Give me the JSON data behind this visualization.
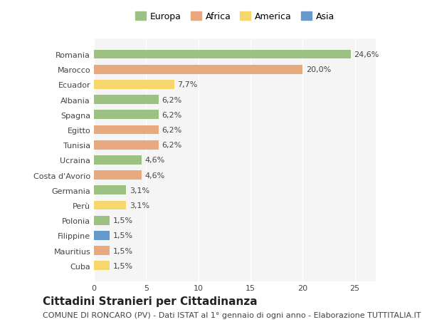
{
  "countries": [
    "Romania",
    "Marocco",
    "Ecuador",
    "Albania",
    "Spagna",
    "Egitto",
    "Tunisia",
    "Ucraina",
    "Costa d'Avorio",
    "Germania",
    "Perù",
    "Polonia",
    "Filippine",
    "Mauritius",
    "Cuba"
  ],
  "values": [
    24.6,
    20.0,
    7.7,
    6.2,
    6.2,
    6.2,
    6.2,
    4.6,
    4.6,
    3.1,
    3.1,
    1.5,
    1.5,
    1.5,
    1.5
  ],
  "labels": [
    "24,6%",
    "20,0%",
    "7,7%",
    "6,2%",
    "6,2%",
    "6,2%",
    "6,2%",
    "4,6%",
    "4,6%",
    "3,1%",
    "3,1%",
    "1,5%",
    "1,5%",
    "1,5%",
    "1,5%"
  ],
  "continents": [
    "Europa",
    "Africa",
    "America",
    "Europa",
    "Europa",
    "Africa",
    "Africa",
    "Europa",
    "Africa",
    "Europa",
    "America",
    "Europa",
    "Asia",
    "Africa",
    "America"
  ],
  "continent_colors": {
    "Europa": "#9dc183",
    "Africa": "#e8a97e",
    "America": "#f5d76e",
    "Asia": "#6699cc"
  },
  "legend_order": [
    "Europa",
    "Africa",
    "America",
    "Asia"
  ],
  "title": "Cittadini Stranieri per Cittadinanza",
  "subtitle": "COMUNE DI RONCARO (PV) - Dati ISTAT al 1° gennaio di ogni anno - Elaborazione TUTTITALIA.IT",
  "xlim": [
    0,
    27
  ],
  "xticks": [
    0,
    5,
    10,
    15,
    20,
    25
  ],
  "bg_color": "#ffffff",
  "bar_height": 0.6,
  "title_fontsize": 11,
  "subtitle_fontsize": 8,
  "label_fontsize": 8,
  "tick_fontsize": 8,
  "legend_fontsize": 9
}
